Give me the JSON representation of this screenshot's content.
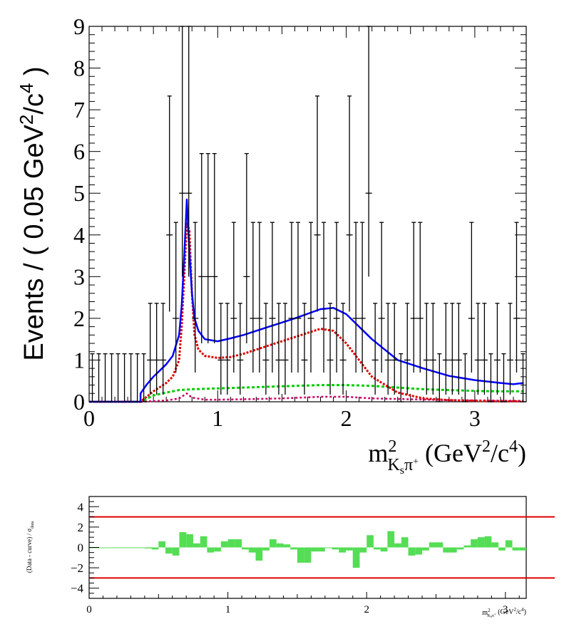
{
  "chart_data": [
    {
      "type": "scatter",
      "subtype": "histogram-with-fit",
      "ylabel_text": "Events / ( 0.05 GeV",
      "ylabel_sup1": "2",
      "ylabel_mid": "/c",
      "ylabel_sup2": "4",
      "ylabel_end": " )",
      "xlabel_main": "m",
      "xlabel_sup": "2",
      "xlabel_sub": "K",
      "xlabel_subsub": "s",
      "xlabel_pi": "π",
      "xlabel_piplus": "+",
      "xlabel_units_a": " (GeV",
      "xlabel_units_sup1": "2",
      "xlabel_units_b": "/c",
      "xlabel_units_sup2": "4",
      "xlabel_units_c": ")",
      "xlim": [
        0,
        3.4
      ],
      "ylim": [
        0,
        9
      ],
      "x_ticks": [
        "0",
        "1",
        "2",
        "3"
      ],
      "y_ticks": [
        "0",
        "1",
        "2",
        "3",
        "4",
        "5",
        "6",
        "7",
        "8",
        "9"
      ],
      "bin_width": 0.05,
      "x": [
        0.025,
        0.075,
        0.125,
        0.175,
        0.225,
        0.275,
        0.325,
        0.375,
        0.425,
        0.475,
        0.525,
        0.575,
        0.625,
        0.675,
        0.725,
        0.775,
        0.825,
        0.875,
        0.925,
        0.975,
        1.025,
        1.075,
        1.125,
        1.175,
        1.225,
        1.275,
        1.325,
        1.375,
        1.425,
        1.475,
        1.525,
        1.575,
        1.625,
        1.675,
        1.725,
        1.775,
        1.825,
        1.875,
        1.925,
        1.975,
        2.025,
        2.075,
        2.125,
        2.175,
        2.225,
        2.275,
        2.325,
        2.375,
        2.425,
        2.475,
        2.525,
        2.575,
        2.625,
        2.675,
        2.725,
        2.775,
        2.825,
        2.875,
        2.925,
        2.975,
        3.025,
        3.075,
        3.125,
        3.175,
        3.225,
        3.275,
        3.325,
        3.375
      ],
      "values": [
        0,
        0,
        0,
        0,
        0,
        0,
        0,
        0,
        0,
        1,
        1,
        1,
        4,
        2,
        5,
        5,
        2,
        3,
        3,
        3,
        1,
        1,
        2,
        1,
        3,
        2,
        2,
        1,
        2,
        1,
        1,
        2,
        2,
        1,
        2,
        4,
        2,
        1,
        2,
        1,
        4,
        2,
        2,
        5,
        1,
        2,
        1,
        1,
        0,
        1,
        2,
        2,
        1,
        1,
        0,
        1,
        1,
        1,
        0,
        2,
        1,
        1,
        0,
        1,
        0,
        1,
        2,
        0
      ],
      "fit_total": {
        "x": [
          0.4,
          0.45,
          0.5,
          0.55,
          0.6,
          0.65,
          0.7,
          0.72,
          0.74,
          0.76,
          0.78,
          0.8,
          0.82,
          0.85,
          0.9,
          1.0,
          1.1,
          1.2,
          1.4,
          1.6,
          1.8,
          1.9,
          2.0,
          2.2,
          2.4,
          2.6,
          2.8,
          3.0,
          3.2,
          3.3,
          3.38
        ],
        "y": [
          0.2,
          0.42,
          0.6,
          0.75,
          0.9,
          1.1,
          1.6,
          2.3,
          3.5,
          4.85,
          3.6,
          2.6,
          2.0,
          1.7,
          1.5,
          1.45,
          1.52,
          1.6,
          1.8,
          2.0,
          2.22,
          2.25,
          2.1,
          1.5,
          1.0,
          0.8,
          0.62,
          0.52,
          0.45,
          0.42,
          0.45
        ]
      },
      "fit_resonance": {
        "x": [
          0.4,
          0.5,
          0.6,
          0.65,
          0.7,
          0.72,
          0.74,
          0.76,
          0.78,
          0.8,
          0.82,
          0.85,
          0.9,
          1.0,
          1.1,
          1.2,
          1.4,
          1.6,
          1.8,
          1.9,
          2.0,
          2.2,
          2.4,
          2.6,
          2.8,
          3.0,
          3.2,
          3.38
        ],
        "y": [
          0.0,
          0.25,
          0.45,
          0.6,
          1.0,
          1.8,
          3.0,
          4.3,
          4.1,
          2.6,
          1.6,
          1.25,
          1.1,
          1.05,
          1.07,
          1.15,
          1.35,
          1.55,
          1.75,
          1.7,
          1.4,
          0.6,
          0.22,
          0.08,
          0.04,
          0.02,
          0.01,
          0.01
        ]
      },
      "fit_background": {
        "x": [
          0.4,
          0.5,
          0.6,
          0.7,
          0.8,
          1.0,
          1.2,
          1.4,
          1.6,
          1.8,
          2.0,
          2.2,
          2.4,
          2.6,
          2.8,
          3.0,
          3.2,
          3.38
        ],
        "y": [
          0.0,
          0.15,
          0.22,
          0.28,
          0.3,
          0.32,
          0.34,
          0.36,
          0.38,
          0.4,
          0.4,
          0.38,
          0.34,
          0.3,
          0.28,
          0.26,
          0.25,
          0.25
        ]
      },
      "fit_small": {
        "x": [
          0.4,
          0.6,
          0.7,
          0.76,
          0.8,
          0.9,
          1.0,
          1.2,
          1.5,
          1.8,
          2.0,
          2.2,
          2.5,
          2.8,
          3.1,
          3.38
        ],
        "y": [
          0.0,
          0.03,
          0.08,
          0.2,
          0.1,
          0.05,
          0.05,
          0.06,
          0.08,
          0.12,
          0.12,
          0.08,
          0.06,
          0.04,
          0.03,
          0.02
        ]
      },
      "colors": {
        "total": "#0000ff",
        "resonance": "#dd0000",
        "background": "#00cc00",
        "small": "#cc0066",
        "data": "#000000"
      }
    },
    {
      "type": "bar",
      "subtype": "pull",
      "ylabel": "(Data - curve) / σ",
      "ylabel_sub": "data",
      "xlabel_main": "m",
      "xlabel_sup": "2",
      "xlabel_sub": "K",
      "xlabel_subsub": "s",
      "xlabel_pi": "π",
      "xlabel_piplus": "+",
      "xlabel_units": " (GeV",
      "xlabel_units_sup1": "2",
      "xlabel_units_b": "/c",
      "xlabel_units_sup2": "4",
      "xlabel_units_c": ")",
      "xlim": [
        0,
        3.15
      ],
      "ylim": [
        -5,
        5
      ],
      "x_ticks": [
        "0",
        "1",
        "2",
        "3"
      ],
      "y_ticks": [
        "4",
        "2",
        "0",
        "−2",
        "−4"
      ],
      "y_tick_values": [
        4,
        2,
        0,
        -2,
        -4
      ],
      "bin_width": 0.05,
      "x": [
        0.025,
        0.075,
        0.125,
        0.175,
        0.225,
        0.275,
        0.325,
        0.375,
        0.425,
        0.475,
        0.525,
        0.575,
        0.625,
        0.675,
        0.725,
        0.775,
        0.825,
        0.875,
        0.925,
        0.975,
        1.025,
        1.075,
        1.125,
        1.175,
        1.225,
        1.275,
        1.325,
        1.375,
        1.425,
        1.475,
        1.525,
        1.575,
        1.625,
        1.675,
        1.725,
        1.775,
        1.825,
        1.875,
        1.925,
        1.975,
        2.025,
        2.075,
        2.125,
        2.175,
        2.225,
        2.275,
        2.325,
        2.375,
        2.425,
        2.475,
        2.525,
        2.575,
        2.625,
        2.675,
        2.725,
        2.775,
        2.825,
        2.875,
        2.925,
        2.975,
        3.025,
        3.075,
        3.125
      ],
      "values": [
        0,
        0,
        0,
        0,
        0,
        0,
        0,
        0,
        -0.1,
        -0.2,
        0.6,
        -0.6,
        -0.8,
        1.5,
        1.3,
        0.4,
        1.1,
        -0.5,
        -0.4,
        0.6,
        0.8,
        0.8,
        -0.2,
        -0.5,
        -1.3,
        -0.3,
        0.8,
        0.4,
        0.3,
        -0.2,
        -1.5,
        -1.5,
        -0.4,
        -0.4,
        0,
        -0.2,
        -0.5,
        -0.3,
        -2.0,
        -0.5,
        1.2,
        -0.2,
        -0.4,
        1.6,
        0.4,
        1.0,
        -0.8,
        -0.7,
        -0.3,
        0.5,
        0.5,
        -0.5,
        -0.5,
        -0.2,
        0.2,
        0.8,
        1.0,
        1.1,
        0.5,
        -0.3,
        0.7,
        -0.3,
        -0.3
      ],
      "limit_lines": [
        3,
        -3
      ],
      "colors": {
        "bars": "#55dd55",
        "limits": "#dd0000"
      }
    }
  ]
}
